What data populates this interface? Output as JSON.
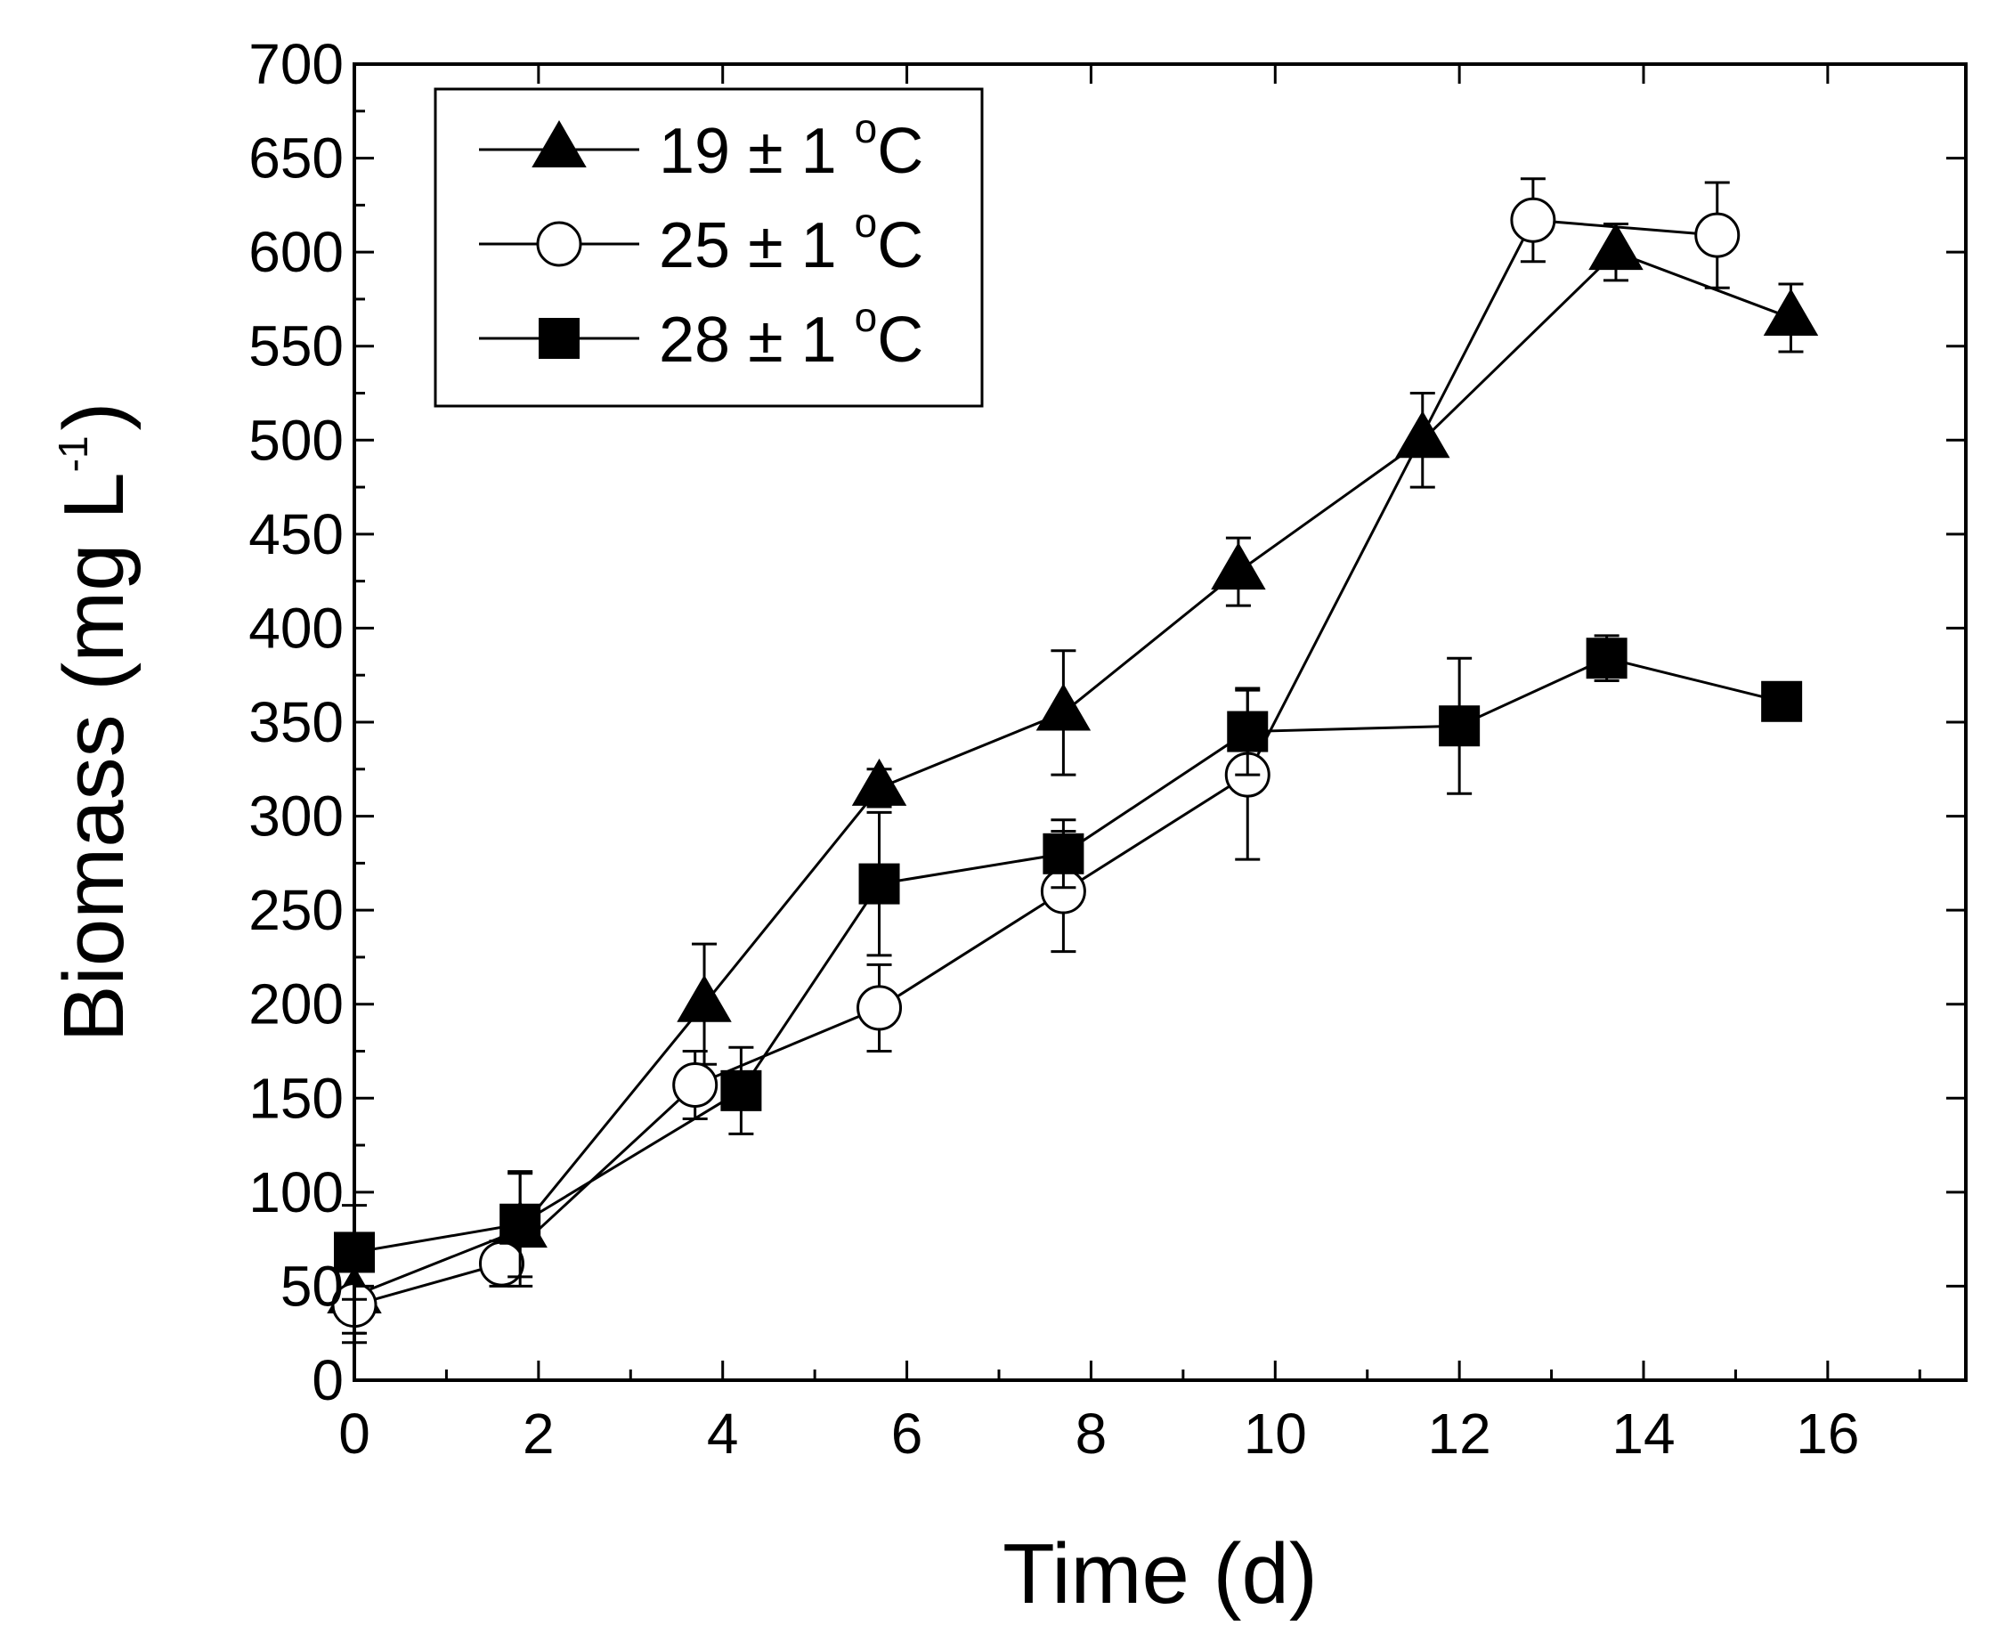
{
  "chart_data": {
    "type": "line",
    "title": "",
    "xlabel": "Time (d)",
    "ylabel": {
      "main": "Biomass (mg L",
      "superscript": "-1",
      "close": ")"
    },
    "xlim": [
      0,
      17.5
    ],
    "ylim": [
      0,
      700
    ],
    "xticks": [
      0,
      2,
      4,
      6,
      8,
      10,
      12,
      14,
      16
    ],
    "yticks": [
      0,
      50,
      100,
      150,
      200,
      250,
      300,
      350,
      400,
      450,
      500,
      550,
      600,
      650,
      700
    ],
    "grid": false,
    "legend_position": "top-left",
    "series": [
      {
        "name": "19 ± 1 °C",
        "label_text": "19 ± 1 ",
        "label_sup": "o",
        "label_unit": "C",
        "marker": "filled-triangle",
        "x": [
          0,
          1.8,
          3.8,
          5.7,
          7.7,
          9.6,
          11.6,
          13.7,
          15.6
        ],
        "values": [
          45,
          80,
          200,
          315,
          355,
          430,
          500,
          600,
          565
        ],
        "errors": [
          20,
          30,
          32,
          10,
          33,
          18,
          25,
          15,
          18
        ]
      },
      {
        "name": "25 ± 1 °C",
        "label_text": "25 ± 1 ",
        "label_sup": "o",
        "label_unit": "C",
        "marker": "open-circle",
        "x": [
          0,
          1.6,
          3.7,
          5.7,
          7.7,
          9.7,
          12.8,
          14.8
        ],
        "values": [
          40,
          62,
          157,
          198,
          260,
          322,
          617,
          609
        ],
        "errors": [
          20,
          12,
          18,
          23,
          32,
          45,
          22,
          28
        ]
      },
      {
        "name": "28 ± 1 °C",
        "label_text": "28 ± 1 ",
        "label_sup": "o",
        "label_unit": "C",
        "marker": "filled-square",
        "x": [
          0,
          1.8,
          4.2,
          5.7,
          7.7,
          9.7,
          12.0,
          13.6,
          15.5
        ],
        "values": [
          68,
          83,
          154,
          264,
          280,
          345,
          348,
          384,
          361
        ],
        "errors": [
          25,
          28,
          23,
          38,
          18,
          23,
          36,
          12,
          5
        ]
      }
    ]
  }
}
